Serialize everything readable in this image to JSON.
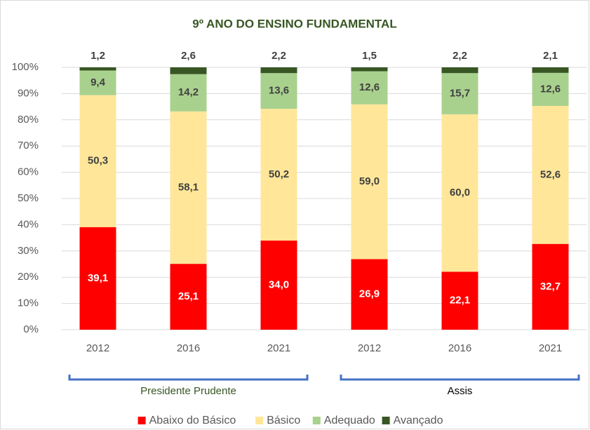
{
  "chart_data": {
    "type": "stacked_bar",
    "title": "9º ANO DO ENSINO FUNDAMENTAL",
    "categories": [
      "2012",
      "2016",
      "2021",
      "2012",
      "2016",
      "2021"
    ],
    "groups": [
      "Presidente Prudente",
      "Assis"
    ],
    "series": [
      {
        "name": "Abaixo do Básico",
        "color": "#ff0000",
        "values": [
          39.1,
          25.1,
          34.0,
          26.9,
          22.1,
          32.7
        ],
        "value_labels": [
          "39,1",
          "25,1",
          "34,0",
          "26,9",
          "22,1",
          "32,7"
        ]
      },
      {
        "name": "Básico",
        "color": "#ffe699",
        "values": [
          50.3,
          58.1,
          50.2,
          59.0,
          60.0,
          52.6
        ],
        "value_labels": [
          "50,3",
          "58,1",
          "50,2",
          "59,0",
          "60,0",
          "52,6"
        ]
      },
      {
        "name": "Adequado",
        "color": "#a9d18e",
        "values": [
          9.4,
          14.2,
          13.6,
          12.6,
          15.7,
          12.6
        ],
        "value_labels": [
          "9,4",
          "14,2",
          "13,6",
          "12,6",
          "15,7",
          "12,6"
        ]
      },
      {
        "name": "Avançado",
        "color": "#375623",
        "values": [
          1.2,
          2.6,
          2.2,
          1.5,
          2.2,
          2.1
        ],
        "value_labels": [
          "1,2",
          "2,6",
          "2,2",
          "1,5",
          "2,2",
          "2,1"
        ]
      }
    ],
    "ylim": [
      0,
      100
    ],
    "yticks": [
      {
        "value": 0,
        "label": "0%"
      },
      {
        "value": 10,
        "label": "10%"
      },
      {
        "value": 20,
        "label": "20%"
      },
      {
        "value": 30,
        "label": "30%"
      },
      {
        "value": 40,
        "label": "40%"
      },
      {
        "value": 50,
        "label": "50%"
      },
      {
        "value": 60,
        "label": "60%"
      },
      {
        "value": 70,
        "label": "70%"
      },
      {
        "value": 80,
        "label": "80%"
      },
      {
        "value": 90,
        "label": "90%"
      },
      {
        "value": 100,
        "label": "100%"
      }
    ],
    "grid": true
  }
}
